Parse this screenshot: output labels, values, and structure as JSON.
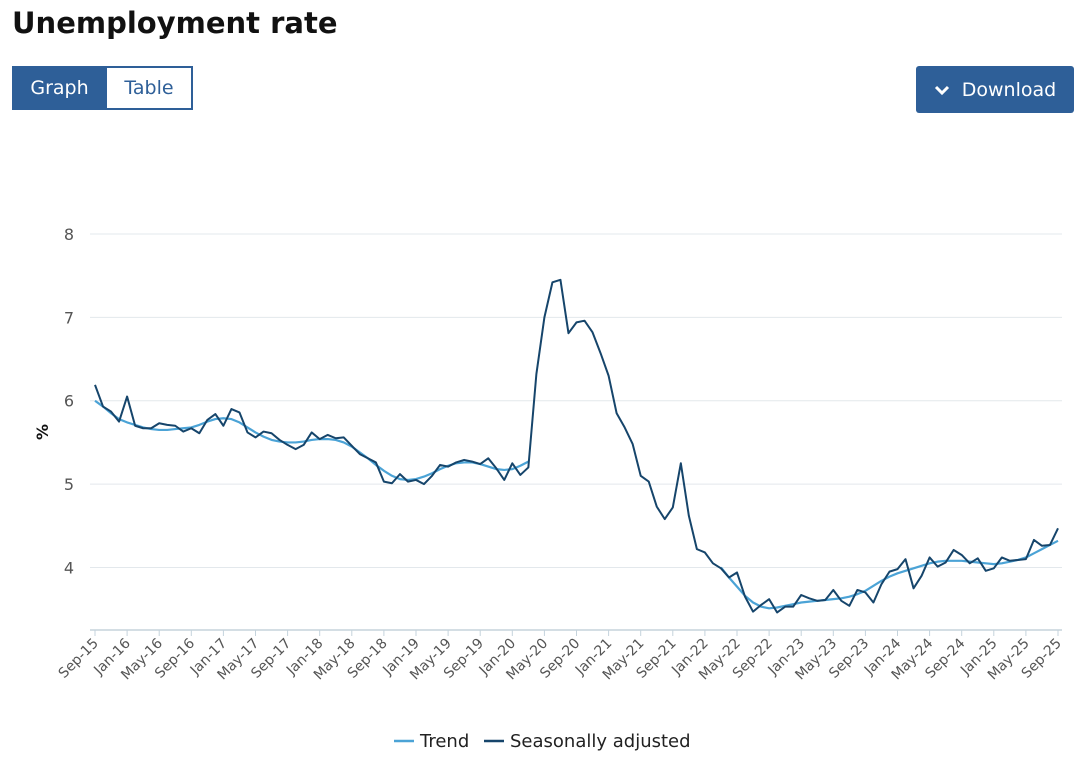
{
  "header": {
    "title": "Unemployment rate"
  },
  "tabs": [
    "Graph",
    "Table"
  ],
  "download": "Download",
  "chart_data": {
    "type": "line",
    "y_label": "%",
    "ylim": [
      3.25,
      8
    ],
    "yticks": [
      4,
      5,
      6,
      7,
      8
    ],
    "grid": true,
    "legend": "bottom",
    "categories": [
      "Sep-15",
      null,
      null,
      null,
      "Jan-16",
      null,
      null,
      null,
      "May-16",
      null,
      null,
      null,
      "Sep-16",
      null,
      null,
      null,
      "Jan-17",
      null,
      null,
      null,
      "May-17",
      null,
      null,
      null,
      "Sep-17",
      null,
      null,
      null,
      "Jan-18",
      null,
      null,
      null,
      "May-18",
      null,
      null,
      null,
      "Sep-18",
      null,
      null,
      null,
      "Jan-19",
      null,
      null,
      null,
      "May-19",
      null,
      null,
      null,
      "Sep-19",
      null,
      null,
      null,
      "Jan-20",
      null,
      null,
      null,
      "May-20",
      null,
      null,
      null,
      "Sep-20",
      null,
      null,
      null,
      "Jan-21",
      null,
      null,
      null,
      "May-21",
      null,
      null,
      null,
      "Sep-21",
      null,
      null,
      null,
      "Jan-22",
      null,
      null,
      null,
      "May-22",
      null,
      null,
      null,
      "Sep-22",
      null,
      null,
      null,
      "Jan-23",
      null,
      null,
      null,
      "May-23",
      null,
      null,
      null,
      "Sep-23",
      null,
      null,
      null,
      "Jan-24",
      null,
      null,
      null,
      "May-24",
      null,
      null,
      null,
      "Sep-24",
      null,
      null,
      null,
      "Jan-25",
      null,
      null,
      null,
      "May-25",
      null,
      null,
      null,
      "Sep-25"
    ],
    "series": [
      {
        "name": "Trend",
        "color": "#4ba3d6",
        "values": [
          6.0,
          5.93,
          5.85,
          5.78,
          5.74,
          5.71,
          5.68,
          5.66,
          5.65,
          5.65,
          5.66,
          5.67,
          5.68,
          5.71,
          5.75,
          5.78,
          5.79,
          5.78,
          5.74,
          5.68,
          5.62,
          5.57,
          5.53,
          5.51,
          5.5,
          5.5,
          5.51,
          5.53,
          5.54,
          5.54,
          5.53,
          5.5,
          5.45,
          5.38,
          5.31,
          5.23,
          5.16,
          5.1,
          5.06,
          5.05,
          5.06,
          5.09,
          5.13,
          5.18,
          5.22,
          5.25,
          5.26,
          5.26,
          5.24,
          5.21,
          5.18,
          5.17,
          5.18,
          5.22,
          5.27,
          null,
          null,
          null,
          null,
          null,
          null,
          null,
          null,
          null,
          null,
          null,
          null,
          null,
          null,
          null,
          null,
          null,
          null,
          null,
          null,
          null,
          null,
          null,
          4.0,
          3.88,
          3.77,
          3.66,
          3.58,
          3.53,
          3.51,
          3.52,
          3.54,
          3.56,
          3.58,
          3.59,
          3.6,
          3.61,
          3.62,
          3.63,
          3.65,
          3.68,
          3.72,
          3.78,
          3.84,
          3.89,
          3.93,
          3.96,
          3.99,
          4.02,
          4.05,
          4.07,
          4.08,
          4.08,
          4.08,
          4.07,
          4.06,
          4.05,
          4.04,
          4.05,
          4.07,
          4.09,
          4.12,
          4.17,
          4.22,
          4.27,
          4.32
        ]
      },
      {
        "name": "Seasonally adjusted",
        "color": "#16456b",
        "values": [
          6.19,
          5.93,
          5.87,
          5.75,
          6.05,
          5.7,
          5.67,
          5.67,
          5.73,
          5.71,
          5.7,
          5.63,
          5.67,
          5.61,
          5.77,
          5.84,
          5.7,
          5.9,
          5.86,
          5.62,
          5.56,
          5.63,
          5.61,
          5.53,
          5.47,
          5.42,
          5.47,
          5.62,
          5.54,
          5.59,
          5.55,
          5.56,
          5.46,
          5.36,
          5.31,
          5.26,
          5.03,
          5.01,
          5.12,
          5.03,
          5.05,
          5.0,
          5.1,
          5.23,
          5.21,
          5.26,
          5.29,
          5.27,
          5.24,
          5.31,
          5.19,
          5.05,
          5.25,
          5.11,
          5.2,
          6.32,
          7.0,
          7.42,
          7.45,
          6.81,
          6.94,
          6.96,
          6.82,
          6.57,
          6.3,
          5.85,
          5.68,
          5.48,
          5.1,
          5.03,
          4.73,
          4.58,
          4.72,
          5.25,
          4.62,
          4.22,
          4.18,
          4.05,
          3.99,
          3.88,
          3.94,
          3.65,
          3.47,
          3.55,
          3.62,
          3.46,
          3.53,
          3.53,
          3.67,
          3.63,
          3.6,
          3.61,
          3.73,
          3.6,
          3.54,
          3.73,
          3.7,
          3.58,
          3.8,
          3.95,
          3.98,
          4.1,
          3.75,
          3.9,
          4.12,
          4.01,
          4.06,
          4.21,
          4.15,
          4.05,
          4.11,
          3.96,
          3.99,
          4.12,
          4.08,
          4.09,
          4.1,
          4.33,
          4.26,
          4.27,
          4.47
        ]
      }
    ]
  }
}
